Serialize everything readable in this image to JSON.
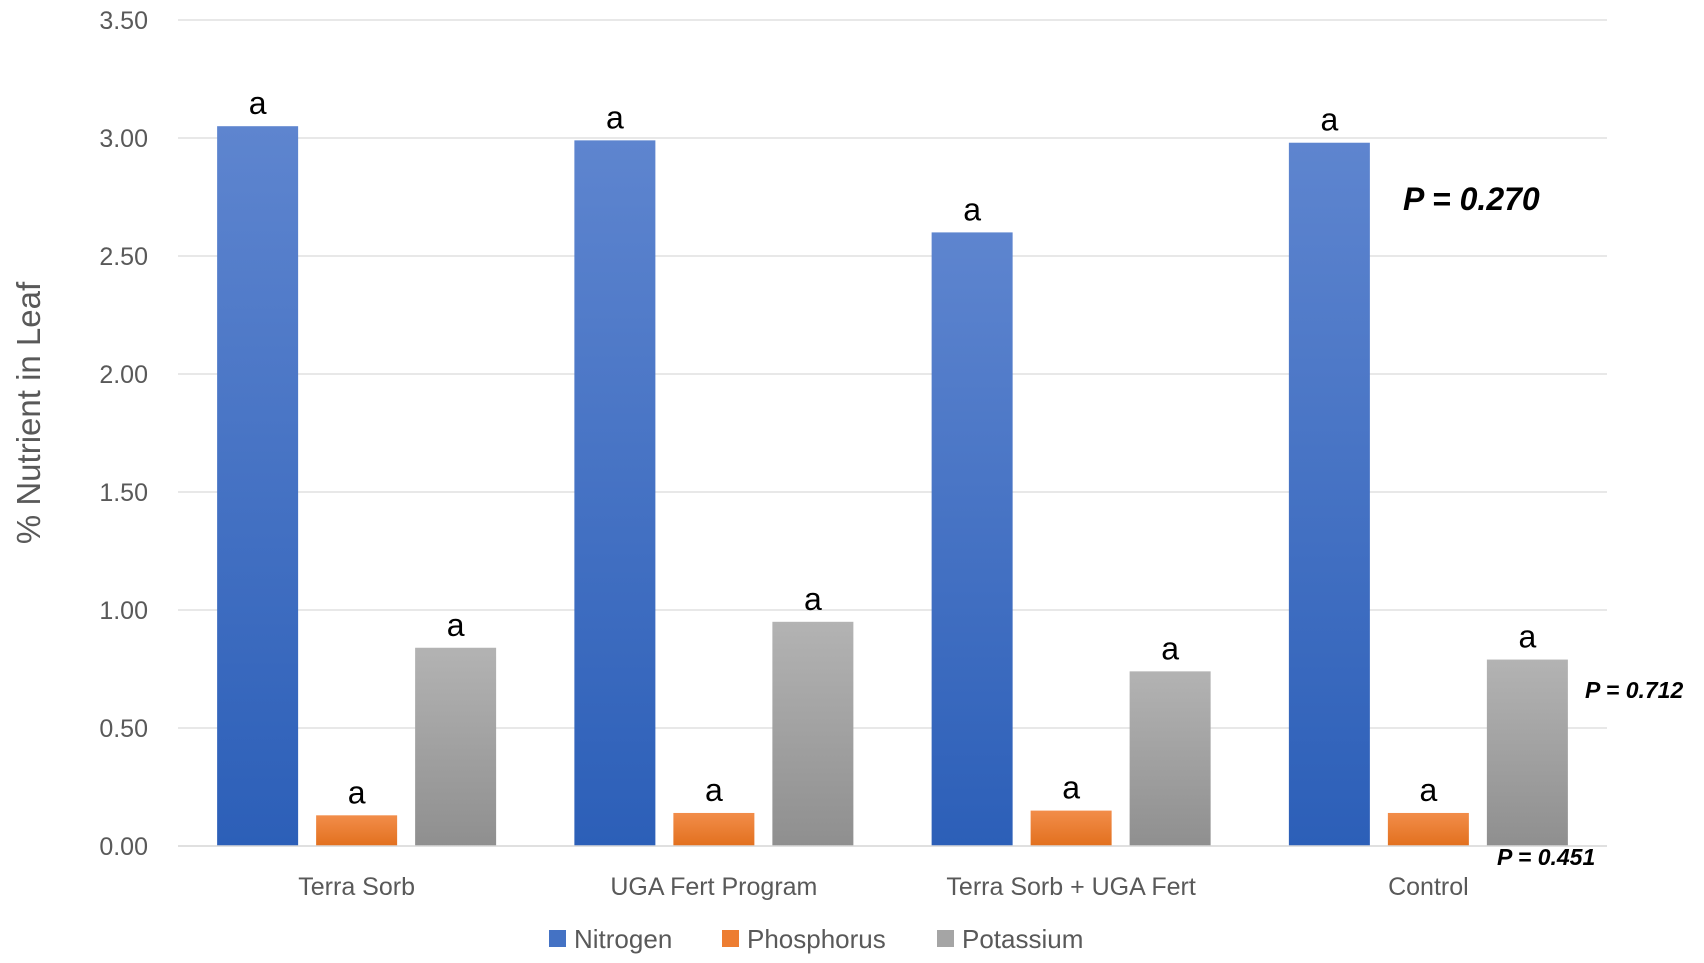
{
  "chart_data": {
    "type": "bar",
    "ylabel": "% Nutrient in Leaf",
    "xlabel": "",
    "ylim": [
      0,
      3.5
    ],
    "yticks": [
      "0.00",
      "0.50",
      "1.00",
      "1.50",
      "2.00",
      "2.50",
      "3.00",
      "3.50"
    ],
    "grid": true,
    "legend_position": "bottom",
    "categories": [
      "Terra Sorb",
      "UGA Fert Program",
      "Terra Sorb + UGA Fert",
      "Control"
    ],
    "series": [
      {
        "name": "Nitrogen",
        "color": "#4472C4",
        "values": [
          3.05,
          2.99,
          2.6,
          2.98
        ],
        "labels": [
          "a",
          "a",
          "a",
          "a"
        ]
      },
      {
        "name": "Phosphorus",
        "color": "#ED7D31",
        "values": [
          0.13,
          0.14,
          0.15,
          0.14
        ],
        "labels": [
          "a",
          "a",
          "a",
          "a"
        ]
      },
      {
        "name": "Potassium",
        "color": "#A5A5A5",
        "values": [
          0.84,
          0.95,
          0.74,
          0.79
        ],
        "labels": [
          "a",
          "a",
          "a",
          "a"
        ]
      }
    ],
    "annotations": [
      "P = 0.270",
      "P = 0.712",
      "P = 0.451"
    ]
  }
}
